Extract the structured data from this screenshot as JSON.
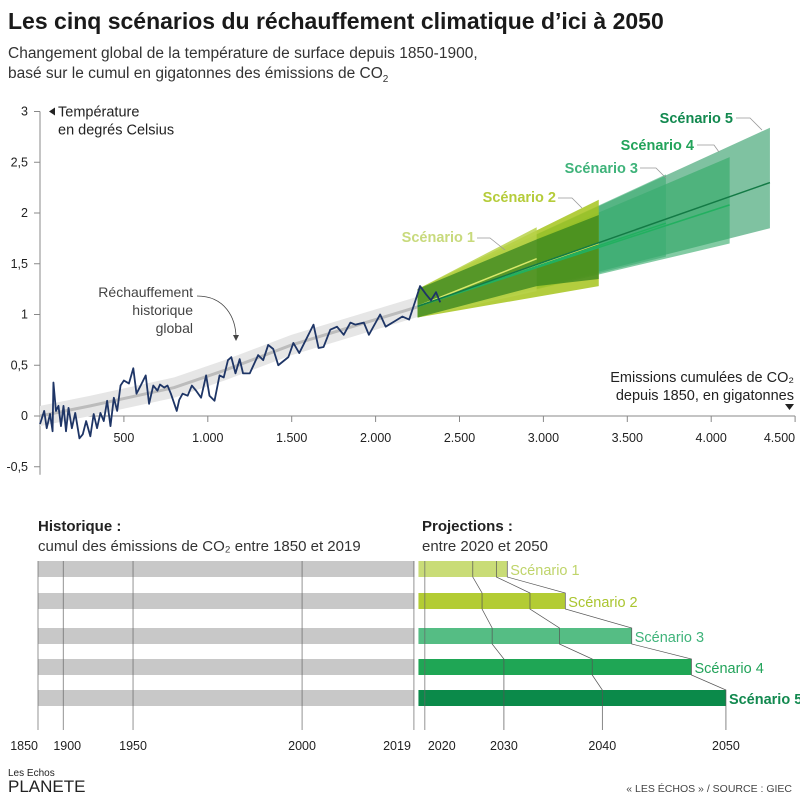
{
  "header": {
    "title": "Les cinq scénarios du réchauffement climatique d’ici à 2050",
    "subtitle_line1": "Changement global de la température de surface depuis 1850-1900,",
    "subtitle_line2": "basé sur le cumul en gigatonnes des émissions de CO",
    "subtitle_sub": "2"
  },
  "chart_data": [
    {
      "type": "line",
      "ylabel_line1": "Température",
      "ylabel_line2": "en degrés Celsius",
      "xlabel_line1": "Emissions cumulées de CO₂",
      "xlabel_line2": "depuis 1850, en gigatonnes",
      "xlim": [
        0,
        4500
      ],
      "ylim": [
        -0.5,
        3
      ],
      "xticks": [
        {
          "v": 500,
          "label": "500"
        },
        {
          "v": 1000,
          "label": "1.000"
        },
        {
          "v": 1500,
          "label": "1.500"
        },
        {
          "v": 2000,
          "label": "2.000"
        },
        {
          "v": 2500,
          "label": "2.500"
        },
        {
          "v": 3000,
          "label": "3.000"
        },
        {
          "v": 3500,
          "label": "3.500"
        },
        {
          "v": 4000,
          "label": "4.000"
        },
        {
          "v": 4500,
          "label": "4.500"
        }
      ],
      "yticks": [
        {
          "v": -0.5,
          "label": "-0,5"
        },
        {
          "v": 0,
          "label": "0"
        },
        {
          "v": 0.5,
          "label": "0,5"
        },
        {
          "v": 1,
          "label": "1"
        },
        {
          "v": 1.5,
          "label": "1,5"
        },
        {
          "v": 2,
          "label": "2"
        },
        {
          "v": 2.5,
          "label": "2,5"
        },
        {
          "v": 3,
          "label": "3"
        }
      ],
      "annotation": [
        "Réchauffement",
        "historique",
        "global"
      ],
      "historical": [
        [
          0,
          -0.08
        ],
        [
          25,
          0.05
        ],
        [
          40,
          -0.12
        ],
        [
          60,
          0.02
        ],
        [
          75,
          -0.15
        ],
        [
          80,
          0.33
        ],
        [
          95,
          0.05
        ],
        [
          110,
          0.1
        ],
        [
          125,
          -0.1
        ],
        [
          140,
          0.1
        ],
        [
          155,
          -0.15
        ],
        [
          170,
          0.08
        ],
        [
          190,
          -0.12
        ],
        [
          210,
          0.03
        ],
        [
          235,
          -0.22
        ],
        [
          255,
          -0.18
        ],
        [
          275,
          -0.05
        ],
        [
          300,
          -0.2
        ],
        [
          320,
          0.02
        ],
        [
          340,
          -0.12
        ],
        [
          360,
          0.03
        ],
        [
          380,
          -0.05
        ],
        [
          400,
          0.15
        ],
        [
          420,
          -0.1
        ],
        [
          440,
          0.18
        ],
        [
          460,
          0.05
        ],
        [
          480,
          0.3
        ],
        [
          500,
          0.35
        ],
        [
          530,
          0.32
        ],
        [
          556,
          0.47
        ],
        [
          575,
          0.22
        ],
        [
          600,
          0.3
        ],
        [
          630,
          0.4
        ],
        [
          650,
          0.12
        ],
        [
          675,
          0.3
        ],
        [
          700,
          0.25
        ],
        [
          715,
          0.31
        ],
        [
          740,
          0.28
        ],
        [
          760,
          0.3
        ],
        [
          780,
          0.22
        ],
        [
          815,
          0.05
        ],
        [
          830,
          0.16
        ],
        [
          850,
          0.22
        ],
        [
          880,
          0.2
        ],
        [
          905,
          0.3
        ],
        [
          930,
          0.25
        ],
        [
          960,
          0.18
        ],
        [
          990,
          0.4
        ],
        [
          1010,
          0.2
        ],
        [
          1040,
          0.15
        ],
        [
          1070,
          0.4
        ],
        [
          1095,
          0.38
        ],
        [
          1120,
          0.55
        ],
        [
          1140,
          0.58
        ],
        [
          1165,
          0.42
        ],
        [
          1190,
          0.56
        ],
        [
          1210,
          0.42
        ],
        [
          1250,
          0.42
        ],
        [
          1300,
          0.6
        ],
        [
          1330,
          0.55
        ],
        [
          1360,
          0.7
        ],
        [
          1390,
          0.66
        ],
        [
          1420,
          0.5
        ],
        [
          1480,
          0.58
        ],
        [
          1510,
          0.72
        ],
        [
          1545,
          0.62
        ],
        [
          1630,
          0.9
        ],
        [
          1660,
          0.67
        ],
        [
          1690,
          0.68
        ],
        [
          1730,
          0.85
        ],
        [
          1770,
          0.88
        ],
        [
          1810,
          0.8
        ],
        [
          1850,
          0.92
        ],
        [
          1880,
          0.9
        ],
        [
          1930,
          0.92
        ],
        [
          1960,
          0.8
        ],
        [
          2027,
          1.0
        ],
        [
          2060,
          0.88
        ],
        [
          2110,
          0.93
        ],
        [
          2160,
          0.98
        ],
        [
          2200,
          0.95
        ],
        [
          2240,
          1.15
        ],
        [
          2265,
          1.28
        ],
        [
          2300,
          1.2
        ],
        [
          2330,
          1.14
        ],
        [
          2360,
          1.22
        ],
        [
          2385,
          1.12
        ]
      ],
      "trend": [
        [
          0,
          0
        ],
        [
          300,
          0.1
        ],
        [
          800,
          0.28
        ],
        [
          1100,
          0.45
        ],
        [
          1500,
          0.7
        ],
        [
          2000,
          0.95
        ],
        [
          2400,
          1.15
        ]
      ],
      "scenarios": [
        {
          "name": "Scénario 1",
          "color": "#b9d24a",
          "start": 2250,
          "end": 2960,
          "upper_end": 1.86,
          "lower_end": 1.23,
          "center_end": 1.55
        },
        {
          "name": "Scénario 2",
          "color": "#a6c41c",
          "start": 2250,
          "end": 3330,
          "upper_end": 2.13,
          "lower_end": 1.28,
          "center_end": 1.7
        },
        {
          "name": "Scénario 3",
          "color": "#3aab72",
          "start": 2250,
          "end": 3730,
          "upper_end": 2.38,
          "lower_end": 1.57,
          "center_end": 1.9
        },
        {
          "name": "Scénario 4",
          "color": "#2ea866",
          "start": 2250,
          "end": 4110,
          "upper_end": 2.55,
          "lower_end": 1.7,
          "center_end": 2.08
        },
        {
          "name": "Scénario 5",
          "color": "#2a9a63",
          "start": 2250,
          "end": 4350,
          "upper_end": 2.84,
          "lower_end": 1.85,
          "center_end": 2.3
        }
      ],
      "scenario_start_band": [
        0.97,
        1.25
      ],
      "scenario_start_center": 1.08
    },
    {
      "type": "bar",
      "historical_title": "Historique :",
      "historical_subtitle": "cumul des émissions de CO₂ entre 1850 et 2019",
      "projection_title": "Projections :",
      "projection_subtitle": "entre 2020 et 2050",
      "historical_end_gt": 2250,
      "year_ticks": [
        {
          "year": "1850",
          "gt": 0
        },
        {
          "year": "1900",
          "gt": 150
        },
        {
          "year": "1950",
          "gt": 565
        },
        {
          "year": "2000",
          "gt": 1570
        },
        {
          "year": "2019",
          "gt": 2235
        },
        {
          "year": "2020",
          "gt": 2300
        },
        {
          "year": "2030",
          "gt": 2770
        },
        {
          "year": "2040",
          "gt": 3355
        },
        {
          "year": "2050",
          "gt": 4090
        }
      ],
      "scenarios": [
        {
          "name": "Scénario 1",
          "color": "#c9dc77",
          "label_color": "#bfd46a",
          "y2030": 2585,
          "y2040": 2725,
          "y2050": 2790
        },
        {
          "name": "Scénario 2",
          "color": "#b3cc34",
          "label_color": "#aac530",
          "y2030": 2640,
          "y2040": 2925,
          "y2050": 3135
        },
        {
          "name": "Scénario 3",
          "color": "#55bd84",
          "label_color": "#3fb37a",
          "y2030": 2700,
          "y2040": 3100,
          "y2050": 3530
        },
        {
          "name": "Scénario 4",
          "color": "#1fa655",
          "label_color": "#22a35a",
          "y2030": 2770,
          "y2040": 3295,
          "y2050": 3885
        },
        {
          "name": "Scénario 5",
          "color": "#0b8a4a",
          "label_color": "#12894f",
          "y2030": 2770,
          "y2040": 3355,
          "y2050": 4090
        }
      ]
    }
  ],
  "footer": {
    "logo_line1": "Les Echos",
    "logo_line2": "PLANETE",
    "source": "« LES ÉCHOS » / SOURCE : GIEC"
  }
}
